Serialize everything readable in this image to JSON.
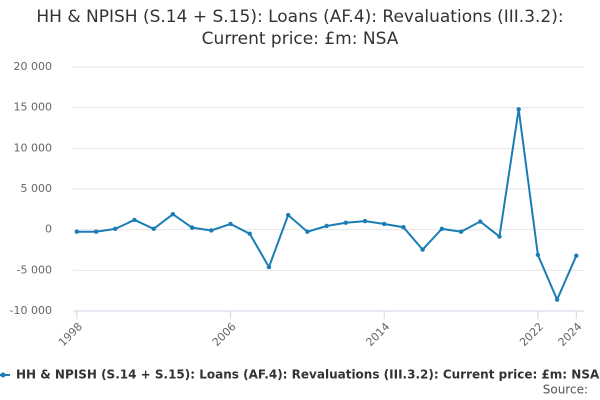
{
  "chart_data": {
    "type": "line",
    "title": "HH & NPISH (S.14 + S.15): Loans (AF.4): Revaluations (III.3.2): Current price: £m: NSA",
    "x": [
      1998,
      1999,
      2000,
      2001,
      2002,
      2003,
      2004,
      2005,
      2006,
      2007,
      2008,
      2009,
      2010,
      2011,
      2012,
      2013,
      2014,
      2015,
      2016,
      2017,
      2018,
      2019,
      2020,
      2021,
      2022,
      2023,
      2024
    ],
    "series": [
      {
        "name": "HH & NPISH (S.14 + S.15): Loans (AF.4): Revaluations (III.3.2): Current price: £m: NSA",
        "color": "#1a7db5",
        "values": [
          -250,
          -250,
          100,
          1200,
          100,
          1900,
          250,
          -100,
          700,
          -500,
          -4600,
          1800,
          -250,
          450,
          850,
          1050,
          700,
          300,
          -2450,
          100,
          -250,
          1000,
          -850,
          14800,
          -3100,
          -8600,
          -3200
        ]
      }
    ],
    "xlim": [
      1997.8,
      2024.4
    ],
    "xticks": [
      1998,
      2006,
      2014,
      2022,
      2024
    ],
    "ylim": [
      -10000,
      20000
    ],
    "yticks": [
      {
        "value": -10000,
        "label": "-10 000"
      },
      {
        "value": -5000,
        "label": "-5 000"
      },
      0,
      {
        "value": 5000,
        "label": "5 000"
      },
      {
        "value": 10000,
        "label": "10 000"
      },
      {
        "value": 15000,
        "label": "15 000"
      },
      {
        "value": 20000,
        "label": "20 000"
      }
    ],
    "grid": true,
    "source": "Source:"
  }
}
